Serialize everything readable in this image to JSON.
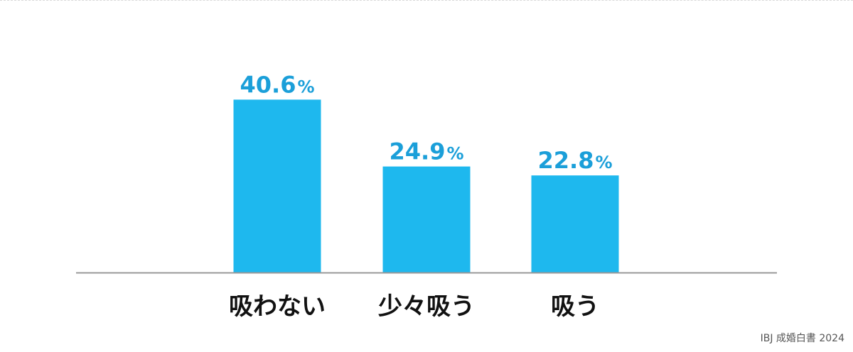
{
  "chart_data": {
    "type": "bar",
    "categories": [
      "吸わない",
      "少々吸う",
      "吸う"
    ],
    "values": [
      40.6,
      24.9,
      22.8
    ],
    "value_labels": [
      "40.6",
      "24.9",
      "22.8"
    ],
    "unit": "%",
    "ylim": [
      0,
      50
    ],
    "grid": false,
    "legend": "none",
    "colors": {
      "bar": "#1eb8ee",
      "value_label": "#1b9fd9",
      "category_label": "#111111",
      "axis": "#999999"
    }
  },
  "source": "IBJ 成婚白書 2024"
}
